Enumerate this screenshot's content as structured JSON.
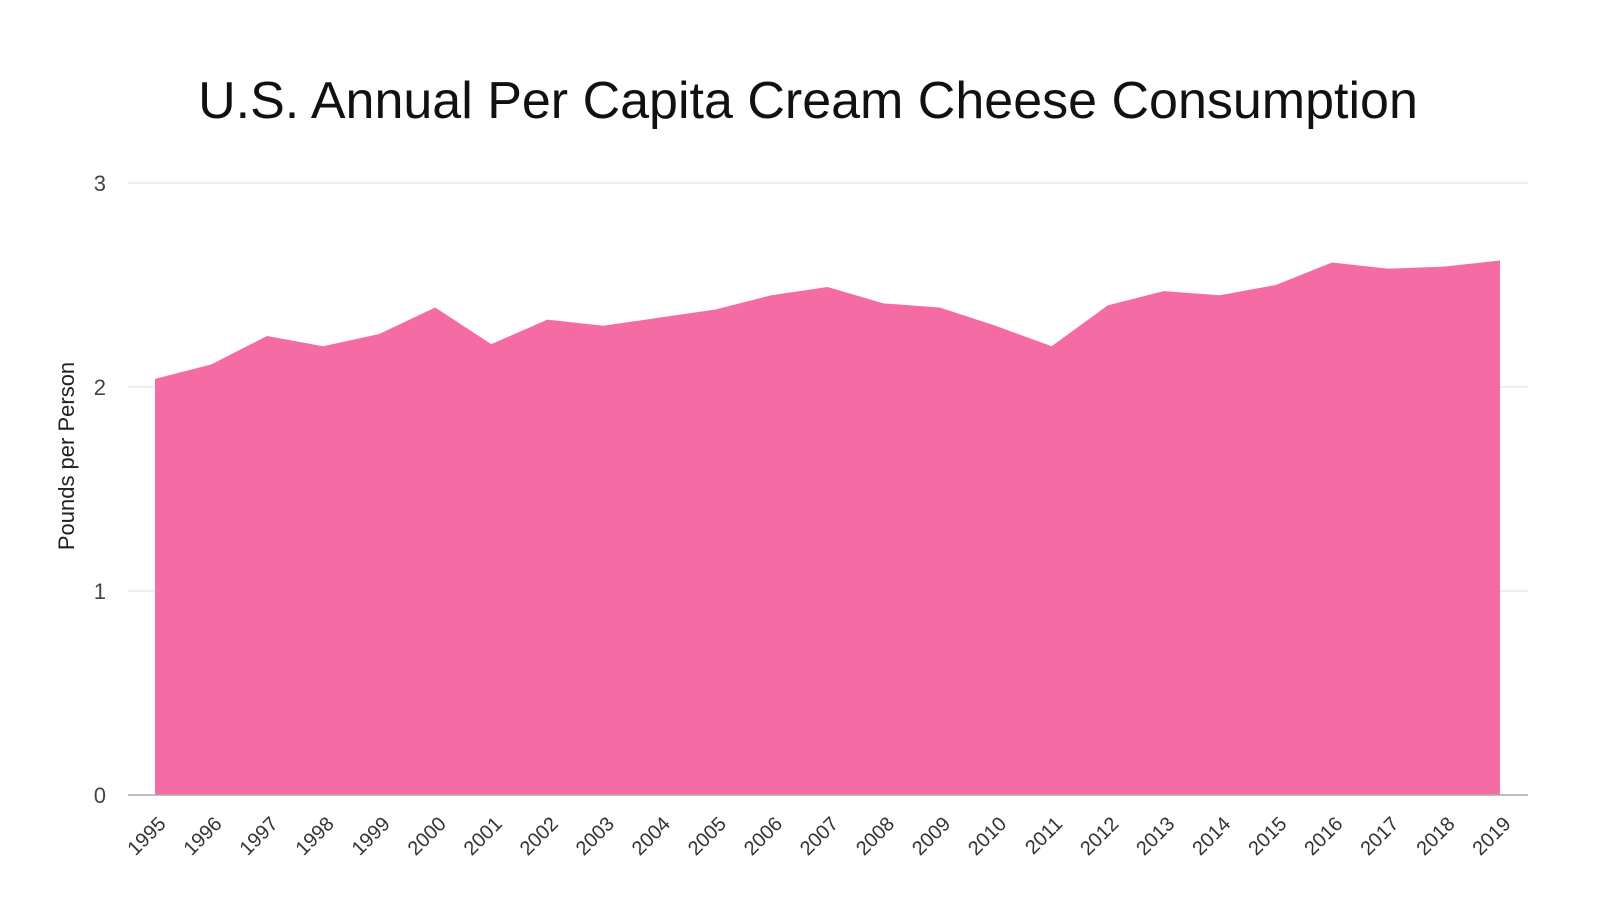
{
  "chart_data": {
    "type": "area",
    "title": "U.S. Annual Per Capita Cream Cheese Consumption",
    "xlabel": "",
    "ylabel": "Pounds per Person",
    "x": [
      "1995",
      "1996",
      "1997",
      "1998",
      "1999",
      "2000",
      "2001",
      "2002",
      "2003",
      "2004",
      "2005",
      "2006",
      "2007",
      "2008",
      "2009",
      "2010",
      "2011",
      "2012",
      "2013",
      "2014",
      "2015",
      "2016",
      "2017",
      "2018",
      "2019"
    ],
    "values": [
      2.04,
      2.11,
      2.25,
      2.2,
      2.26,
      2.39,
      2.21,
      2.33,
      2.3,
      2.34,
      2.38,
      2.45,
      2.49,
      2.41,
      2.39,
      2.3,
      2.2,
      2.4,
      2.47,
      2.45,
      2.5,
      2.61,
      2.58,
      2.59,
      2.62
    ],
    "ylim": [
      0,
      3
    ],
    "yticks": [
      "0",
      "1",
      "2",
      "3"
    ],
    "grid": true,
    "legend": "none",
    "color": "#f56ca5",
    "gridColor": "#dddddd",
    "axisColor": "#aaaaaa"
  }
}
